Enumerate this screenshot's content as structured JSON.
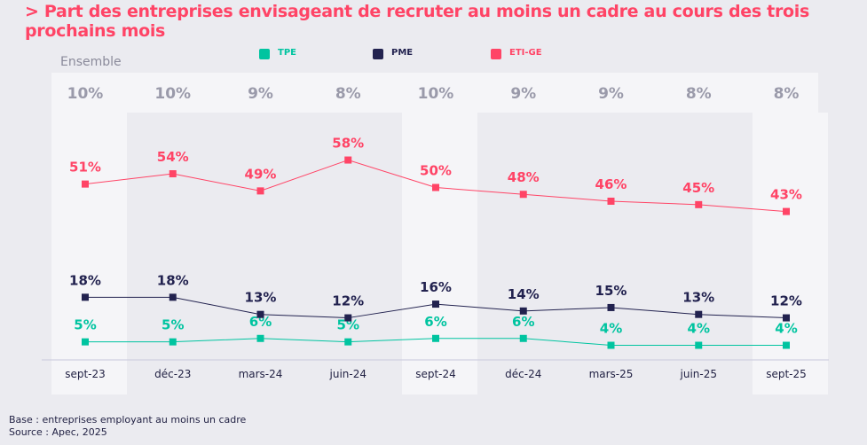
{
  "title": "> Part des entreprises envisageant de recruter au moins un cadre au cours des trois prochains mois",
  "footnotes": {
    "base": "Base : entreprises employant au moins un cadre",
    "source": "Source : Apec, 2025"
  },
  "chart_data": {
    "type": "line",
    "title": "> Part des entreprises envisageant de recruter au moins un cadre au cours des trois prochains mois",
    "categories": [
      "sept-23",
      "déc-23",
      "mars-24",
      "juin-24",
      "sept-24",
      "déc-24",
      "mars-25",
      "juin-25",
      "sept-25"
    ],
    "ensemble_label": "Ensemble",
    "ensemble": [
      10,
      10,
      9,
      8,
      10,
      9,
      9,
      8,
      8
    ],
    "series": [
      {
        "name": "TPE",
        "color": "#00c4a0",
        "values": [
          5,
          5,
          6,
          5,
          6,
          6,
          4,
          4,
          4
        ]
      },
      {
        "name": "PME",
        "color": "#22224f",
        "values": [
          18,
          18,
          13,
          12,
          16,
          14,
          15,
          13,
          12
        ]
      },
      {
        "name": "ETI-GE",
        "color": "#ff4466",
        "values": [
          51,
          54,
          49,
          58,
          50,
          48,
          46,
          45,
          43
        ]
      }
    ],
    "unit": "%",
    "legend": "top",
    "grid": false
  }
}
